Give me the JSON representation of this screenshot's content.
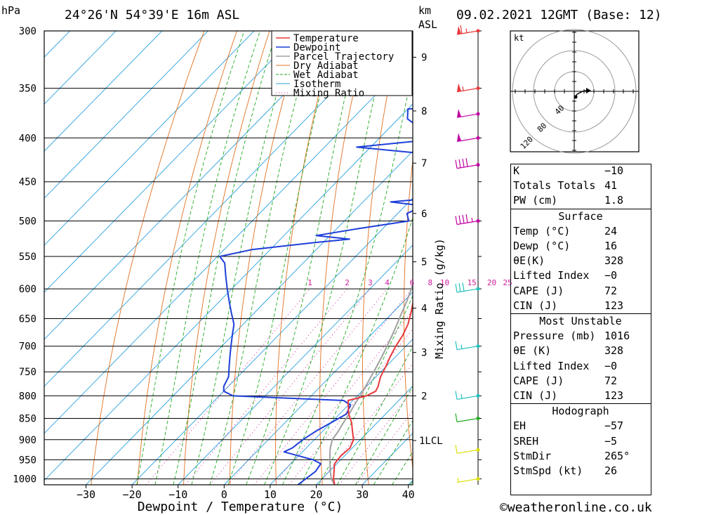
{
  "header": {
    "pressure_unit": "hPa",
    "location": "24°26'N  54°39'E  16m  ASL",
    "height_unit_line1": "km",
    "height_unit_line2": "ASL",
    "datetime": "09.02.2021  12GMT  (Base: 12)"
  },
  "footer": {
    "credit": "©weatheronline.co.uk"
  },
  "colors": {
    "temperature": "#e8383a",
    "dewpoint": "#1f3fd9",
    "parcel": "#a0a0a0",
    "dry_adiabat": "#e07020",
    "wet_adiabat": "#22aa22",
    "isotherm": "#2aa0e0",
    "mixing_ratio": "#d020a0"
  },
  "chart_data": {
    "type": "line",
    "title": "Skew-T log-P sounding",
    "xlabel": "Dewpoint / Temperature (°C)",
    "ylabel": "hPa",
    "y2label": "Mixing Ratio (g/kg)",
    "xlim": [
      -40,
      40
    ],
    "ylim": [
      1000,
      300
    ],
    "x_ticks": [
      -30,
      -20,
      -10,
      0,
      10,
      20,
      30,
      40
    ],
    "x_tick_labels": [
      "−30",
      "−20",
      "−10",
      "0",
      "10",
      "20",
      "30",
      "40"
    ],
    "pressure_levels": [
      300,
      350,
      400,
      450,
      500,
      550,
      600,
      650,
      700,
      750,
      800,
      850,
      900,
      950,
      1000
    ],
    "height_levels": [
      {
        "km": 1,
        "p": 902,
        "label": "1LCL"
      },
      {
        "km": 2,
        "p": 800,
        "label": "2"
      },
      {
        "km": 3,
        "p": 712,
        "label": "3"
      },
      {
        "km": 4,
        "p": 632,
        "label": "4"
      },
      {
        "km": 5,
        "p": 558,
        "label": "5"
      },
      {
        "km": 6,
        "p": 490,
        "label": "6"
      },
      {
        "km": 7,
        "p": 428,
        "label": "7"
      },
      {
        "km": 8,
        "p": 372,
        "label": "8"
      },
      {
        "km": 9,
        "p": 322,
        "label": "9"
      }
    ],
    "mixing_ratio_labels": [
      {
        "w": 1,
        "label": "1"
      },
      {
        "w": 2,
        "label": "2"
      },
      {
        "w": 3,
        "label": "3"
      },
      {
        "w": 4,
        "label": "4"
      },
      {
        "w": 6,
        "label": "6"
      },
      {
        "w": 8,
        "label": "8"
      },
      {
        "w": 10,
        "label": "10"
      },
      {
        "w": 15,
        "label": "15"
      },
      {
        "w": 20,
        "label": "20"
      },
      {
        "w": 25,
        "label": "25"
      }
    ],
    "legend": [
      "Temperature",
      "Dewpoint",
      "Parcel Trajectory",
      "Dry Adiabat",
      "Wet Adiabat",
      "Isotherm",
      "Mixing Ratio"
    ],
    "legend_position": "top-right",
    "series": [
      {
        "name": "Temperature",
        "points": [
          [
            1016,
            24
          ],
          [
            1000,
            22.5
          ],
          [
            980,
            21
          ],
          [
            960,
            19.5
          ],
          [
            940,
            19.2
          ],
          [
            920,
            19.5
          ],
          [
            900,
            18.5
          ],
          [
            880,
            16.5
          ],
          [
            860,
            14.5
          ],
          [
            840,
            12
          ],
          [
            820,
            10
          ],
          [
            810,
            9
          ],
          [
            800,
            12
          ],
          [
            790,
            13
          ],
          [
            780,
            12.5
          ],
          [
            760,
            11
          ],
          [
            740,
            10
          ],
          [
            720,
            8.8
          ],
          [
            700,
            7.8
          ],
          [
            680,
            7
          ],
          [
            660,
            5.8
          ],
          [
            640,
            4
          ],
          [
            620,
            2
          ],
          [
            600,
            0
          ],
          [
            580,
            -2
          ],
          [
            560,
            -4
          ],
          [
            540,
            -6.5
          ],
          [
            520,
            -8.8
          ],
          [
            500,
            -11
          ],
          [
            480,
            -13.5
          ],
          [
            460,
            -16
          ],
          [
            450,
            -17
          ],
          [
            440,
            -18.5
          ],
          [
            420,
            -21.5
          ],
          [
            400,
            -24.5
          ],
          [
            380,
            -27.5
          ],
          [
            360,
            -30.5
          ],
          [
            340,
            -33.5
          ],
          [
            320,
            -36
          ],
          [
            310,
            -37
          ],
          [
            300,
            -38.5
          ]
        ]
      },
      {
        "name": "Dewpoint",
        "points": [
          [
            1016,
            16
          ],
          [
            980,
            17
          ],
          [
            960,
            16.5
          ],
          [
            950,
            14
          ],
          [
            940,
            10
          ],
          [
            930,
            6
          ],
          [
            920,
            7
          ],
          [
            900,
            7.5
          ],
          [
            880,
            8.5
          ],
          [
            860,
            10
          ],
          [
            840,
            11.5
          ],
          [
            820,
            10.5
          ],
          [
            810,
            8
          ],
          [
            800,
            -17
          ],
          [
            790,
            -20
          ],
          [
            780,
            -21
          ],
          [
            760,
            -22
          ],
          [
            740,
            -24
          ],
          [
            720,
            -26
          ],
          [
            700,
            -28
          ],
          [
            680,
            -30
          ],
          [
            660,
            -32
          ],
          [
            640,
            -35
          ],
          [
            620,
            -38
          ],
          [
            600,
            -41
          ],
          [
            580,
            -44
          ],
          [
            560,
            -47
          ],
          [
            550,
            -49.5
          ],
          [
            540,
            -44
          ],
          [
            530,
            -32
          ],
          [
            525,
            -25
          ],
          [
            520,
            -33
          ],
          [
            510,
            -25
          ],
          [
            500,
            -16
          ],
          [
            490,
            -18
          ],
          [
            480,
            -16
          ],
          [
            475,
            -24
          ],
          [
            470,
            -15
          ],
          [
            460,
            -20
          ],
          [
            455,
            -16
          ],
          [
            445,
            -17
          ],
          [
            430,
            -19
          ],
          [
            420,
            -21
          ],
          [
            410,
            -43
          ],
          [
            400,
            -25
          ],
          [
            390,
            -33
          ],
          [
            380,
            -38
          ],
          [
            370,
            -40
          ],
          [
            368,
            -31
          ],
          [
            360,
            -32
          ],
          [
            355,
            -45
          ],
          [
            350,
            -40
          ],
          [
            345,
            -47
          ],
          [
            340,
            -45
          ],
          [
            330,
            -44
          ],
          [
            320,
            -41
          ],
          [
            315,
            -42
          ],
          [
            312,
            -51
          ],
          [
            305,
            -59
          ],
          [
            300,
            -54
          ]
        ]
      },
      {
        "name": "Parcel Trajectory",
        "points": [
          [
            1016,
            24
          ],
          [
            1000,
            22
          ],
          [
            980,
            20.2
          ],
          [
            960,
            18.5
          ],
          [
            940,
            16.8
          ],
          [
            920,
            15.2
          ],
          [
            900,
            13.9
          ],
          [
            880,
            13.4
          ],
          [
            860,
            12.7
          ],
          [
            840,
            12.1
          ],
          [
            820,
            11.3
          ],
          [
            800,
            10.6
          ],
          [
            780,
            9.8
          ],
          [
            760,
            8.9
          ],
          [
            740,
            8
          ],
          [
            720,
            7
          ],
          [
            700,
            5.9
          ],
          [
            680,
            4.7
          ],
          [
            660,
            3.4
          ],
          [
            640,
            2
          ],
          [
            620,
            0.6
          ],
          [
            600,
            -1
          ],
          [
            580,
            -2.7
          ],
          [
            560,
            -4.5
          ],
          [
            540,
            -6.5
          ],
          [
            520,
            -8.6
          ],
          [
            500,
            -10.8
          ],
          [
            480,
            -13.2
          ],
          [
            460,
            -15.8
          ],
          [
            440,
            -18.5
          ],
          [
            420,
            -21.4
          ],
          [
            400,
            -24.5
          ],
          [
            380,
            -27.8
          ],
          [
            360,
            -31.3
          ],
          [
            340,
            -35
          ],
          [
            320,
            -39
          ],
          [
            300,
            -43.3
          ]
        ]
      }
    ],
    "wind_barbs": [
      {
        "p": 300,
        "speed_kt": 65,
        "color": "#e8383a"
      },
      {
        "p": 350,
        "speed_kt": 55,
        "color": "#e8383a"
      },
      {
        "p": 375,
        "speed_kt": 50,
        "color": "#c000a0"
      },
      {
        "p": 400,
        "speed_kt": 50,
        "color": "#c000a0"
      },
      {
        "p": 430,
        "speed_kt": 40,
        "color": "#c000a0"
      },
      {
        "p": 500,
        "speed_kt": 45,
        "color": "#c000a0"
      },
      {
        "p": 600,
        "speed_kt": 30,
        "color": "#20c0c0"
      },
      {
        "p": 700,
        "speed_kt": 15,
        "color": "#20c0c0"
      },
      {
        "p": 800,
        "speed_kt": 15,
        "color": "#20c0c0"
      },
      {
        "p": 850,
        "speed_kt": 10,
        "color": "#22aa22"
      },
      {
        "p": 925,
        "speed_kt": 10,
        "color": "#dddd00"
      },
      {
        "p": 1000,
        "speed_kt": 5,
        "color": "#dddd00"
      }
    ],
    "hodograph": {
      "unit_label": "kt",
      "ring_labels": [
        "40",
        "80",
        "120"
      ]
    }
  },
  "indices": {
    "general": [
      {
        "label": "K",
        "value": "−10"
      },
      {
        "label": "Totals Totals",
        "value": "41"
      },
      {
        "label": "PW (cm)",
        "value": "1.8"
      }
    ],
    "surface": {
      "title": "Surface",
      "rows": [
        {
          "label": "Temp (°C)",
          "value": "24"
        },
        {
          "label": "Dewp (°C)",
          "value": "16"
        },
        {
          "label": "θE(K)",
          "value": "328"
        },
        {
          "label": "Lifted Index",
          "value": "−0"
        },
        {
          "label": "CAPE (J)",
          "value": "72"
        },
        {
          "label": "CIN (J)",
          "value": "123"
        }
      ]
    },
    "most_unstable": {
      "title": "Most Unstable",
      "rows": [
        {
          "label": "Pressure (mb)",
          "value": "1016"
        },
        {
          "label": "θE (K)",
          "value": "328"
        },
        {
          "label": "Lifted Index",
          "value": "−0"
        },
        {
          "label": "CAPE (J)",
          "value": "72"
        },
        {
          "label": "CIN (J)",
          "value": "123"
        }
      ]
    },
    "hodograph": {
      "title": "Hodograph",
      "rows": [
        {
          "label": "EH",
          "value": "−57"
        },
        {
          "label": "SREH",
          "value": "−5"
        },
        {
          "label": "StmDir",
          "value": "265°"
        },
        {
          "label": "StmSpd (kt)",
          "value": "26"
        }
      ]
    }
  }
}
